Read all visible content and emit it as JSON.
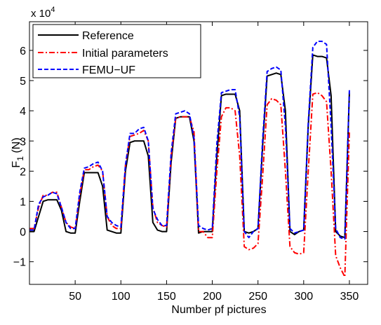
{
  "chart_data": {
    "type": "line",
    "xlabel": "Number pf pictures",
    "ylabel_main": "F",
    "ylabel_sub": "1",
    "ylabel_unit": " (N)",
    "y_multiplier_base": "x 10",
    "y_multiplier_exp": "4",
    "xlim": [
      0,
      370
    ],
    "ylim": [
      -1.75,
      6.95
    ],
    "xticks": [
      50,
      100,
      150,
      200,
      250,
      300,
      350
    ],
    "yticks": [
      -1,
      0,
      1,
      2,
      3,
      4,
      5,
      6
    ],
    "grid": false,
    "legend_position": "top-left",
    "series": [
      {
        "name": "Reference",
        "color": "#000000",
        "dash": "solid",
        "x": [
          0,
          5,
          10,
          15,
          20,
          25,
          30,
          35,
          40,
          45,
          50,
          55,
          60,
          65,
          70,
          75,
          80,
          85,
          90,
          95,
          100,
          105,
          110,
          115,
          120,
          125,
          130,
          135,
          140,
          145,
          150,
          155,
          160,
          165,
          170,
          175,
          180,
          185,
          190,
          195,
          200,
          205,
          210,
          215,
          220,
          225,
          230,
          235,
          240,
          245,
          250,
          255,
          260,
          265,
          270,
          275,
          280,
          285,
          290,
          295,
          300,
          305,
          310,
          315,
          320,
          325,
          330,
          335,
          340,
          345,
          350
        ],
        "values": [
          0,
          0,
          0.5,
          1,
          1.05,
          1.05,
          1.05,
          0.7,
          0,
          -0.05,
          -0.05,
          1,
          1.95,
          1.95,
          1.95,
          1.95,
          1.5,
          0.05,
          0,
          -0.05,
          -0.05,
          2,
          2.95,
          3,
          3,
          3,
          2.5,
          0.3,
          0.05,
          0,
          0,
          2.3,
          3.75,
          3.8,
          3.8,
          3.8,
          3,
          -0.05,
          0,
          0,
          0,
          2.5,
          4.5,
          4.55,
          4.55,
          4.55,
          4,
          0,
          -0.05,
          0,
          0.1,
          2.8,
          5.15,
          5.2,
          5.25,
          5.2,
          4,
          0,
          -0.1,
          0,
          0.05,
          3.5,
          5.85,
          5.8,
          5.8,
          5.75,
          4.5,
          0,
          -0.15,
          -0.2,
          4.6
        ]
      },
      {
        "name": "Initial parameters",
        "color": "#ff0000",
        "dash": "dashdot",
        "x": [
          0,
          5,
          10,
          15,
          20,
          25,
          30,
          35,
          40,
          45,
          50,
          55,
          60,
          65,
          70,
          75,
          80,
          85,
          90,
          95,
          100,
          105,
          110,
          115,
          120,
          125,
          130,
          135,
          140,
          145,
          150,
          155,
          160,
          165,
          170,
          175,
          180,
          185,
          190,
          195,
          200,
          205,
          210,
          215,
          220,
          225,
          230,
          235,
          240,
          245,
          250,
          255,
          260,
          265,
          270,
          275,
          280,
          285,
          290,
          295,
          300,
          305,
          310,
          315,
          320,
          325,
          330,
          335,
          340,
          345,
          350
        ],
        "values": [
          0.1,
          0.1,
          0.8,
          1.2,
          1.2,
          1.3,
          1.3,
          0.8,
          0.3,
          0.15,
          0.1,
          1.2,
          2.05,
          2.05,
          2.15,
          2.2,
          2.0,
          0.5,
          0.2,
          0.1,
          0.1,
          2.2,
          3.15,
          3.2,
          3.25,
          3.35,
          3,
          0.8,
          0.3,
          0.2,
          0.15,
          2.5,
          3.75,
          3.8,
          3.8,
          3.8,
          3.3,
          0,
          0,
          -0.2,
          -0.2,
          2,
          3.8,
          4.1,
          4.1,
          4,
          2.5,
          -0.5,
          -0.6,
          -0.55,
          -0.4,
          1.8,
          4.2,
          4.4,
          4.35,
          4.2,
          2,
          -0.5,
          -0.7,
          -0.75,
          -0.7,
          2,
          4.55,
          4.6,
          4.5,
          4.3,
          2,
          -0.8,
          -1.2,
          -1.5,
          3.3
        ]
      },
      {
        "name": "FEMU−UF",
        "color": "#0000ff",
        "dash": "dashed",
        "x": [
          0,
          5,
          10,
          15,
          20,
          25,
          30,
          35,
          40,
          45,
          50,
          55,
          60,
          65,
          70,
          75,
          80,
          85,
          90,
          95,
          100,
          105,
          110,
          115,
          120,
          125,
          130,
          135,
          140,
          145,
          150,
          155,
          160,
          165,
          170,
          175,
          180,
          185,
          190,
          195,
          200,
          205,
          210,
          215,
          220,
          225,
          230,
          235,
          240,
          245,
          250,
          255,
          260,
          265,
          270,
          275,
          280,
          285,
          290,
          295,
          300,
          305,
          310,
          315,
          320,
          325,
          330,
          335,
          340,
          345,
          350
        ],
        "values": [
          0.05,
          0.05,
          0.9,
          1.15,
          1.2,
          1.3,
          1.25,
          0.8,
          0.3,
          0.1,
          0.1,
          1.3,
          2.1,
          2.15,
          2.25,
          2.3,
          2.0,
          0.5,
          0.3,
          0.2,
          0.15,
          2.2,
          3.25,
          3.25,
          3.4,
          3.45,
          3.0,
          0.75,
          0.4,
          0.2,
          0.2,
          2.6,
          3.9,
          3.95,
          4.0,
          3.9,
          3.1,
          0.2,
          0.1,
          0.05,
          0.1,
          2.9,
          4.6,
          4.65,
          4.7,
          4.7,
          3.8,
          0,
          -0.2,
          0,
          0.1,
          3,
          5.3,
          5.4,
          5.45,
          5.35,
          3.5,
          0.1,
          -0.05,
          0,
          0.05,
          3.6,
          6.1,
          6.3,
          6.3,
          6.2,
          3.5,
          0.1,
          -0.2,
          -0.25,
          4.7
        ]
      }
    ]
  }
}
